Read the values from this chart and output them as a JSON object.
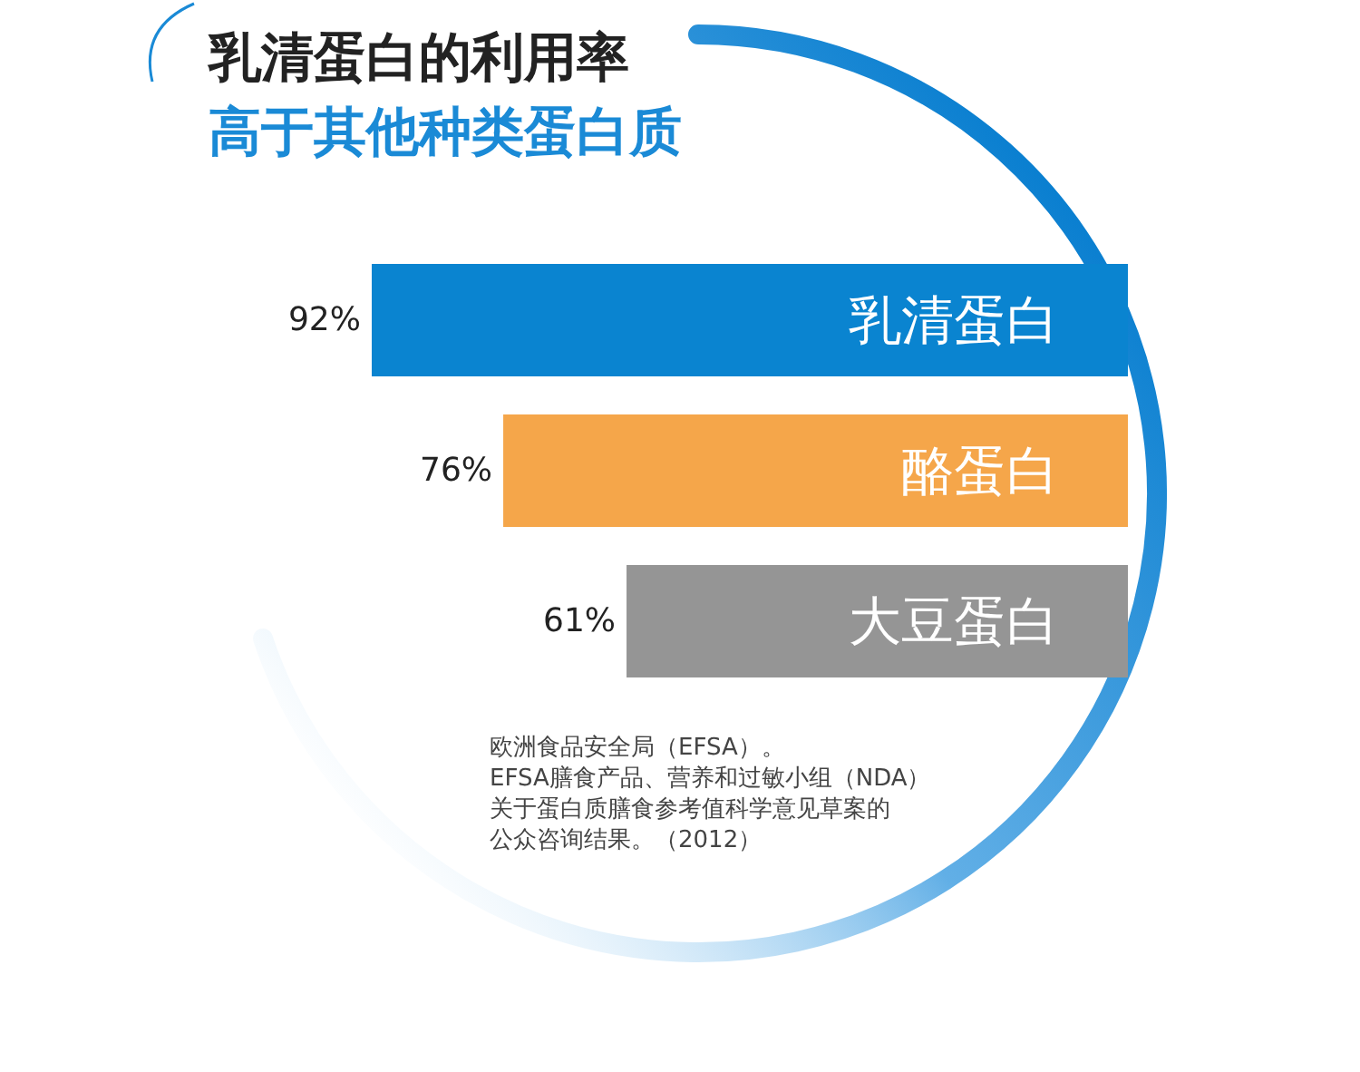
{
  "chart_data": {
    "type": "bar",
    "orientation": "horizontal",
    "title": "乳清蛋白的利用率",
    "subtitle": "高于其他种类蛋白质",
    "categories": [
      "乳清蛋白",
      "酪蛋白",
      "大豆蛋白"
    ],
    "values": [
      92,
      76,
      61
    ],
    "value_labels": [
      "92%",
      "76%",
      "61%"
    ],
    "colors": [
      "#0a84d0",
      "#f5a64a",
      "#959595"
    ],
    "annotations": [
      "欧洲食品安全局（EFSA）。",
      "EFSA膳食产品、营养和过敏小组（NDA）",
      "关于蛋白质膳食参考值科学意见草案的",
      "公众咨询结果。（2012）"
    ]
  }
}
